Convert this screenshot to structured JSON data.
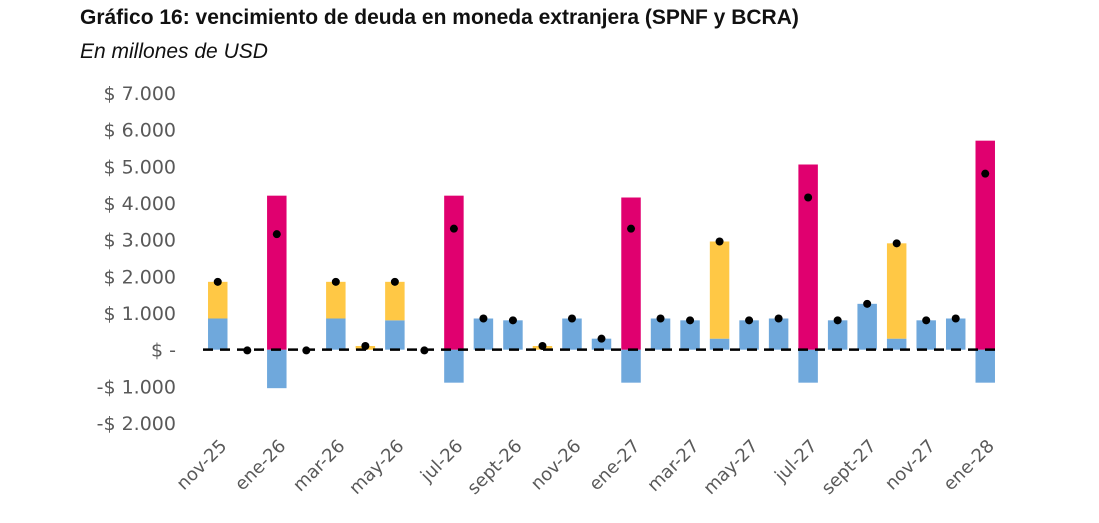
{
  "chart_data": {
    "type": "bar",
    "title": "Gráfico 16: vencimiento de deuda en moneda extranjera (SPNF y BCRA)",
    "subtitle": "En millones de USD",
    "ylim": [
      -2000,
      7000
    ],
    "yticks": [
      {
        "value": 7000,
        "label": "$ 7.000"
      },
      {
        "value": 6000,
        "label": "$ 6.000"
      },
      {
        "value": 5000,
        "label": "$ 5.000"
      },
      {
        "value": 4000,
        "label": "$ 4.000"
      },
      {
        "value": 3000,
        "label": "$ 3.000"
      },
      {
        "value": 2000,
        "label": "$ 2.000"
      },
      {
        "value": 1000,
        "label": "$ 1.000"
      },
      {
        "value": 0,
        "label": "$ -"
      },
      {
        "value": -1000,
        "label": "-$ 1.000"
      },
      {
        "value": -2000,
        "label": "-$ 2.000"
      }
    ],
    "xtick_labels": [
      "nov-25",
      "ene-26",
      "mar-26",
      "may-26",
      "jul-26",
      "sept-26",
      "nov-26",
      "ene-27",
      "mar-27",
      "may-27",
      "jul-27",
      "sept-27",
      "nov-27",
      "ene-28"
    ],
    "categories": [
      "nov-25",
      "dic-25",
      "ene-26",
      "feb-26",
      "mar-26",
      "abr-26",
      "may-26",
      "jun-26",
      "jul-26",
      "ago-26",
      "sept-26",
      "oct-26",
      "nov-26",
      "dic-26",
      "ene-27",
      "feb-27",
      "mar-27",
      "abr-27",
      "may-27",
      "jun-27",
      "jul-27",
      "ago-27",
      "sept-27",
      "oct-27",
      "nov-27",
      "dic-27",
      "ene-28"
    ],
    "series": [
      {
        "color": "#6fa8dc",
        "values": [
          850,
          0,
          -1050,
          0,
          850,
          0,
          800,
          0,
          -900,
          850,
          800,
          0,
          850,
          300,
          -900,
          850,
          800,
          300,
          800,
          850,
          -900,
          800,
          1250,
          300,
          800,
          850,
          -900
        ]
      },
      {
        "color": "#ffc845",
        "values": [
          1000,
          0,
          0,
          0,
          1000,
          100,
          1050,
          0,
          0,
          0,
          0,
          100,
          0,
          0,
          0,
          0,
          0,
          2650,
          0,
          0,
          0,
          0,
          0,
          2600,
          0,
          0,
          0
        ]
      },
      {
        "color": "#e0006f",
        "values": [
          0,
          0,
          4200,
          0,
          0,
          0,
          0,
          0,
          4200,
          0,
          0,
          0,
          0,
          0,
          4150,
          0,
          0,
          0,
          0,
          0,
          5050,
          0,
          0,
          0,
          0,
          0,
          5700
        ]
      }
    ],
    "net": {
      "color": "#000000",
      "values": [
        1850,
        -20,
        3150,
        -20,
        1850,
        100,
        1850,
        -20,
        3300,
        850,
        800,
        100,
        850,
        300,
        3300,
        850,
        800,
        2950,
        800,
        850,
        4150,
        800,
        1250,
        2900,
        800,
        850,
        4800
      ]
    },
    "zero_line": {
      "color": "#000000",
      "style": "dashed"
    },
    "grid": false,
    "legend": "none"
  }
}
